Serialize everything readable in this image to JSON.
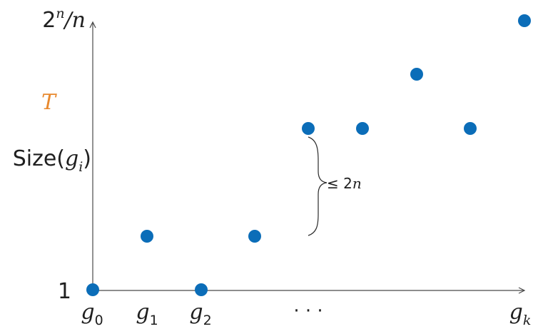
{
  "labels": {
    "y_top_base": "2",
    "y_top_exp": "n",
    "y_top_rest": "/n",
    "threshold": "T",
    "size_prefix": "Size(",
    "size_var": "g",
    "size_sub": "i",
    "size_suffix": ")",
    "y_bottom": "1",
    "brace_le": "≤ 2",
    "brace_n": "n",
    "g_letter": "g",
    "x_ellipsis": "· · ·",
    "subscripts": [
      "0",
      "1",
      "2",
      "k"
    ]
  },
  "chart_data": {
    "type": "scatter",
    "xlabel": "",
    "ylabel": "",
    "x_ticks": [
      "g0",
      "g1",
      "g2",
      "…",
      "gk"
    ],
    "y_ticks": [
      "1",
      "Size(gi)",
      "T",
      "2^n/n"
    ],
    "points": [
      {
        "x": "g0",
        "y": "1"
      },
      {
        "x": "g1",
        "y": "between 1 and Size(gi)"
      },
      {
        "x": "g2",
        "y": "1"
      },
      {
        "x": "g3",
        "y": "between 1 and Size(gi)"
      },
      {
        "x": "g4",
        "y": "Size(gi)"
      },
      {
        "x": "g5",
        "y": "Size(gi)"
      },
      {
        "x": "g6",
        "y": "between Size(gi) and T"
      },
      {
        "x": "g7",
        "y": "Size(gi)"
      },
      {
        "x": "gk",
        "y": "2^n/n"
      }
    ],
    "annotation": "≤ 2n"
  },
  "colors": {
    "point": "#0b6db8",
    "threshold": "#e8892e",
    "axis": "#4a4a4a",
    "text": "#1f1f1f"
  }
}
